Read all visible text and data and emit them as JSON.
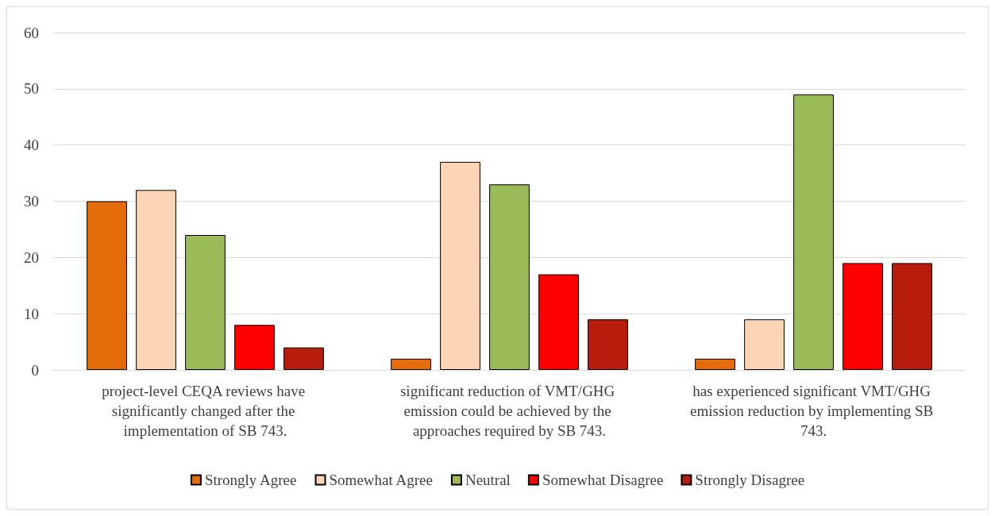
{
  "chart_data": {
    "type": "bar",
    "categories": [
      "project-level CEQA reviews have significantly changed after the implementation of SB 743.",
      "significant reduction of VMT/GHG emission could be achieved by the approaches required by SB 743.",
      "has experienced significant VMT/GHG emission reduction by implementing SB 743."
    ],
    "series": [
      {
        "name": "Strongly Agree",
        "color": "#e46c0a",
        "values": [
          30,
          2,
          2
        ]
      },
      {
        "name": "Somewhat Agree",
        "color": "#fbd5b5",
        "values": [
          32,
          37,
          9
        ]
      },
      {
        "name": "Neutral",
        "color": "#9bbb59",
        "values": [
          24,
          33,
          49
        ]
      },
      {
        "name": "Somewhat Disagree",
        "color": "#ff0000",
        "values": [
          8,
          17,
          19
        ]
      },
      {
        "name": "Strongly Disagree",
        "color": "#b71c0c",
        "values": [
          4,
          9,
          19
        ]
      }
    ],
    "ylim": [
      0,
      60
    ],
    "yticks": [
      0,
      10,
      20,
      30,
      40,
      50,
      60
    ],
    "grid": "y",
    "legend": "bottom"
  }
}
